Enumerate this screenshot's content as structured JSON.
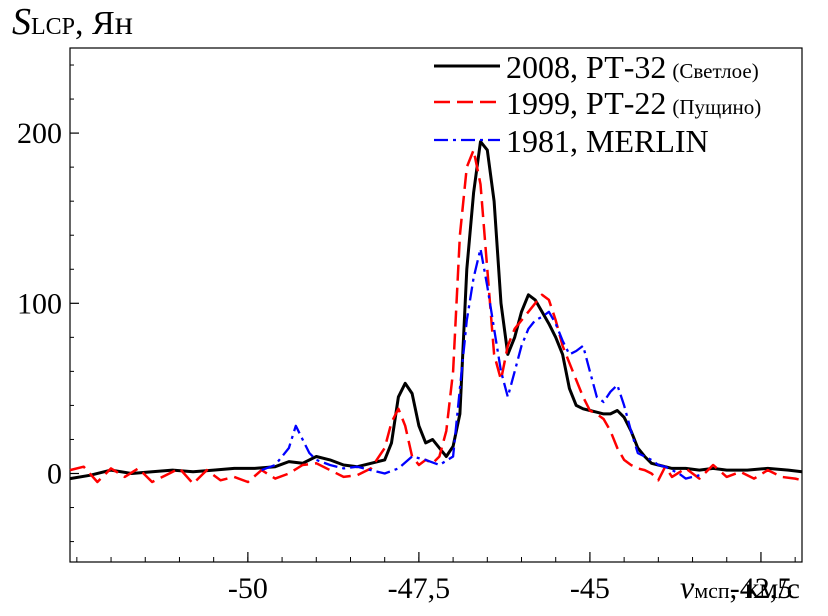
{
  "chart_data": {
    "type": "line",
    "ylabel": {
      "main": "S",
      "sub": "LCP",
      "unit": ", Ян"
    },
    "xlabel": {
      "main": "v",
      "sub": "мсп",
      "unit": ", км/с"
    },
    "xlim": [
      -52.6,
      -41.9
    ],
    "ylim": [
      -52,
      250
    ],
    "x_ticks": [
      -50,
      -47.5,
      -45,
      -42.5
    ],
    "x_tick_labels": [
      "-50",
      "-47,5",
      "-45",
      "-42,5"
    ],
    "y_ticks": [
      0,
      100,
      200
    ],
    "y_tick_labels": [
      "0",
      "100",
      "200"
    ],
    "grid": false,
    "legend_position": "top-right",
    "series": [
      {
        "name": "2008, РТ-32",
        "name_note": "(Светлое)",
        "color": "#000000",
        "style": "solid",
        "x": [
          -52.6,
          -52.3,
          -52.0,
          -51.7,
          -51.4,
          -51.1,
          -50.8,
          -50.5,
          -50.2,
          -49.9,
          -49.6,
          -49.4,
          -49.2,
          -49.0,
          -48.8,
          -48.6,
          -48.4,
          -48.2,
          -48.0,
          -47.9,
          -47.8,
          -47.7,
          -47.6,
          -47.5,
          -47.4,
          -47.3,
          -47.2,
          -47.1,
          -47.0,
          -46.9,
          -46.8,
          -46.7,
          -46.6,
          -46.5,
          -46.4,
          -46.3,
          -46.2,
          -46.1,
          -46.0,
          -45.9,
          -45.8,
          -45.7,
          -45.6,
          -45.5,
          -45.4,
          -45.3,
          -45.2,
          -45.1,
          -45.0,
          -44.9,
          -44.8,
          -44.7,
          -44.6,
          -44.5,
          -44.4,
          -44.3,
          -44.2,
          -44.1,
          -44.0,
          -43.9,
          -43.8,
          -43.7,
          -43.6,
          -43.4,
          -43.2,
          -43.0,
          -42.7,
          -42.4,
          -42.1,
          -41.9
        ],
        "values": [
          -3,
          -1,
          2,
          0,
          1,
          2,
          1,
          2,
          3,
          3,
          4,
          7,
          6,
          10,
          8,
          5,
          4,
          6,
          8,
          18,
          45,
          53,
          47,
          28,
          18,
          20,
          15,
          10,
          16,
          35,
          120,
          165,
          195,
          190,
          160,
          100,
          70,
          80,
          95,
          105,
          102,
          95,
          88,
          80,
          70,
          50,
          40,
          38,
          37,
          36,
          35,
          35,
          37,
          33,
          25,
          15,
          10,
          6,
          5,
          4,
          3,
          3,
          3,
          2,
          3,
          2,
          2,
          3,
          2,
          1
        ]
      },
      {
        "name": "1999, РТ-22",
        "name_note": "(Пущино)",
        "color": "#ff0000",
        "style": "dashed",
        "x": [
          -52.6,
          -52.4,
          -52.2,
          -52.0,
          -51.8,
          -51.6,
          -51.4,
          -51.2,
          -51.0,
          -50.8,
          -50.6,
          -50.4,
          -50.2,
          -50.0,
          -49.8,
          -49.6,
          -49.4,
          -49.2,
          -49.0,
          -48.8,
          -48.6,
          -48.4,
          -48.2,
          -48.0,
          -47.9,
          -47.8,
          -47.7,
          -47.6,
          -47.5,
          -47.4,
          -47.3,
          -47.2,
          -47.1,
          -47.0,
          -46.9,
          -46.8,
          -46.7,
          -46.6,
          -46.5,
          -46.4,
          -46.3,
          -46.2,
          -46.1,
          -46.0,
          -45.9,
          -45.8,
          -45.7,
          -45.6,
          -45.5,
          -45.4,
          -45.3,
          -45.2,
          -45.1,
          -45.0,
          -44.9,
          -44.8,
          -44.7,
          -44.6,
          -44.5,
          -44.4,
          -44.3,
          -44.2,
          -44.1,
          -44.0,
          -43.9,
          -43.8,
          -43.6,
          -43.4,
          -43.2,
          -43.0,
          -42.8,
          -42.6,
          -42.4,
          -42.2,
          -42.0,
          -41.9
        ],
        "values": [
          2,
          4,
          -5,
          3,
          -2,
          3,
          -5,
          -1,
          3,
          -6,
          2,
          -4,
          -2,
          -5,
          2,
          -3,
          0,
          5,
          6,
          2,
          -2,
          -1,
          3,
          15,
          30,
          38,
          28,
          10,
          5,
          8,
          6,
          10,
          25,
          60,
          140,
          180,
          190,
          170,
          120,
          70,
          55,
          75,
          85,
          90,
          95,
          100,
          105,
          102,
          90,
          75,
          65,
          55,
          45,
          37,
          35,
          32,
          25,
          15,
          8,
          5,
          3,
          2,
          0,
          -4,
          4,
          -2,
          3,
          -3,
          5,
          -2,
          1,
          -3,
          2,
          -2,
          -3,
          -4
        ]
      },
      {
        "name": "1981, MERLIN",
        "name_note": "",
        "color": "#0000ff",
        "style": "dashdot",
        "x": [
          -49.8,
          -49.6,
          -49.4,
          -49.3,
          -49.2,
          -49.1,
          -49.0,
          -48.8,
          -48.6,
          -48.4,
          -48.2,
          -48.0,
          -47.8,
          -47.6,
          -47.4,
          -47.2,
          -47.0,
          -46.9,
          -46.8,
          -46.7,
          -46.6,
          -46.5,
          -46.4,
          -46.3,
          -46.2,
          -46.1,
          -46.0,
          -45.9,
          -45.8,
          -45.7,
          -45.6,
          -45.5,
          -45.4,
          -45.3,
          -45.2,
          -45.1,
          -45.0,
          -44.9,
          -44.8,
          -44.7,
          -44.6,
          -44.5,
          -44.4,
          -44.3,
          -44.2,
          -44.1,
          -44.0,
          -43.9,
          -43.8,
          -43.7,
          -43.6,
          -43.5,
          -43.4
        ],
        "values": [
          2,
          5,
          15,
          28,
          20,
          12,
          8,
          5,
          3,
          4,
          2,
          0,
          3,
          10,
          8,
          5,
          10,
          50,
          90,
          115,
          132,
          110,
          85,
          60,
          45,
          60,
          75,
          85,
          90,
          92,
          95,
          88,
          78,
          70,
          72,
          75,
          60,
          45,
          42,
          48,
          52,
          40,
          25,
          12,
          10,
          8,
          5,
          4,
          2,
          0,
          -3,
          -2,
          -1
        ]
      }
    ]
  }
}
